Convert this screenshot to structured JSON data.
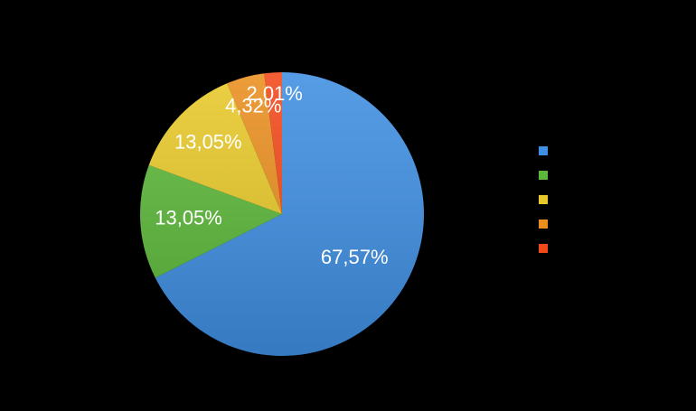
{
  "chart_data": {
    "type": "pie",
    "values": [
      67.57,
      13.05,
      13.05,
      4.32,
      2.01
    ],
    "value_labels": [
      "67,57%",
      "13,05%",
      "13,05%",
      "4,32%",
      "2,01%"
    ],
    "colors": [
      "#3f8fe2",
      "#5cb83a",
      "#e8c92a",
      "#ea8f1f",
      "#f2491a"
    ]
  }
}
